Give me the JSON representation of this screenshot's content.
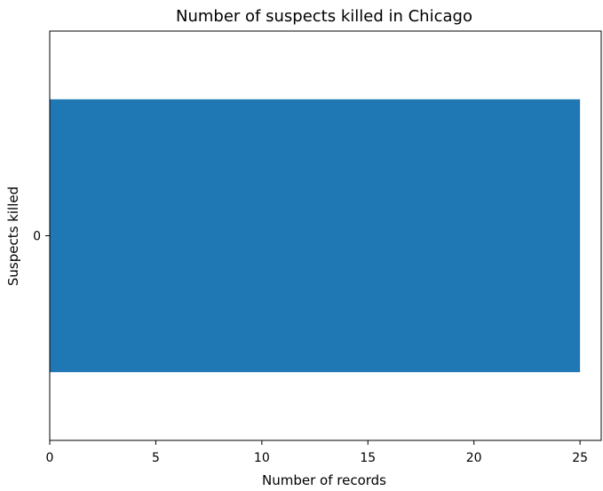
{
  "chart_data": {
    "type": "bar",
    "orientation": "horizontal",
    "title": "Number of suspects killed in Chicago",
    "xlabel": "Number of records",
    "ylabel": "Suspects killed",
    "categories": [
      "0"
    ],
    "values": [
      25
    ],
    "xlim": [
      0,
      26
    ],
    "xticks": [
      "0",
      "5",
      "10",
      "15",
      "20",
      "25"
    ],
    "bar_color": "#1f77b4",
    "grid": false,
    "legend": "none"
  }
}
